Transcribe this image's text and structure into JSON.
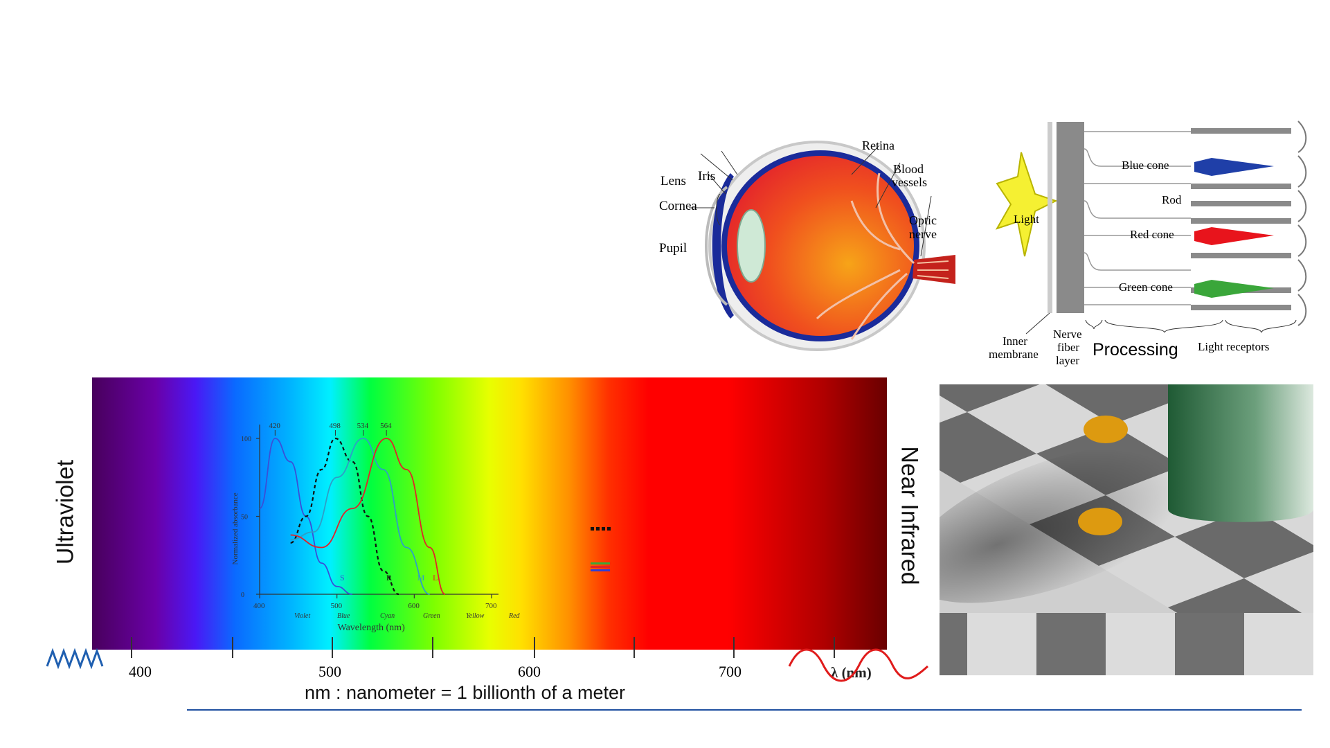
{
  "eye": {
    "labels": {
      "lens": "Lens",
      "iris": "Iris",
      "cornea": "Cornea",
      "pupil": "Pupil",
      "retina": "Retina",
      "blood_vessels_1": "Blood",
      "blood_vessels_2": "vessels",
      "optic_nerve_1": "Optic",
      "optic_nerve_2": "nerve"
    },
    "colors": {
      "eyeball": "#f0501e",
      "retina": "#1a2b9a",
      "nerve": "#c4221c",
      "lens": "#cfe9d6"
    }
  },
  "retina": {
    "light_label": "Light",
    "blue_cone": "Blue cone",
    "rod": "Rod",
    "red_cone": "Red cone",
    "green_cone": "Green cone",
    "inner_membrane_1": "Inner",
    "inner_membrane_2": "membrane",
    "nerve_fiber_1": "Nerve",
    "nerve_fiber_2": "fiber",
    "nerve_fiber_3": "layer",
    "processing": "Processing",
    "light_receptors": "Light receptors",
    "colors": {
      "blue": "#1f3fa8",
      "red": "#e8141c",
      "green": "#3aa63a",
      "light": "#f5f032"
    }
  },
  "spectrum": {
    "left_label": "Ultraviolet",
    "right_label": "Near Infrared",
    "ticks": [
      "400",
      "500",
      "600",
      "700"
    ],
    "unit_label": "λ (nm)",
    "footnote": "nm : nanometer = 1 billionth of a meter"
  },
  "chart_data": {
    "type": "line",
    "xlabel": "Wavelength (nm)",
    "ylabel": "Normalized absorbance",
    "xlim": [
      400,
      700
    ],
    "ylim": [
      0,
      100
    ],
    "x_ticks": [
      "400",
      "500",
      "600",
      "700"
    ],
    "y_ticks": [
      "0",
      "50",
      "100"
    ],
    "color_bands": [
      "Violet",
      "Blue",
      "Cyan",
      "Green",
      "Yellow",
      "Red"
    ],
    "peaks": [
      "420",
      "498",
      "534",
      "564"
    ],
    "series": [
      {
        "name": "S",
        "color": "#3a4fd8",
        "dash": false,
        "x": [
          400,
          420,
          440,
          460,
          480,
          500,
          520
        ],
        "y": [
          55,
          100,
          85,
          50,
          20,
          5,
          0
        ]
      },
      {
        "name": "R",
        "color": "#111111",
        "dash": true,
        "x": [
          440,
          460,
          480,
          498,
          520,
          540,
          560,
          580
        ],
        "y": [
          33,
          50,
          80,
          100,
          85,
          50,
          15,
          0
        ]
      },
      {
        "name": "M",
        "color": "#2e9ec7",
        "dash": false,
        "x": [
          440,
          470,
          500,
          534,
          560,
          590,
          620
        ],
        "y": [
          35,
          40,
          75,
          100,
          80,
          30,
          0
        ]
      },
      {
        "name": "L",
        "color": "#e2222a",
        "dash": false,
        "x": [
          440,
          480,
          520,
          564,
          590,
          620,
          640
        ],
        "y": [
          38,
          30,
          55,
          100,
          80,
          30,
          0
        ]
      }
    ]
  },
  "checker": {
    "colors": {
      "dark": "#6a6a6a",
      "light": "#d8d8d8",
      "dot": "#dd9a10",
      "cylinder": "#1f5a34"
    }
  }
}
